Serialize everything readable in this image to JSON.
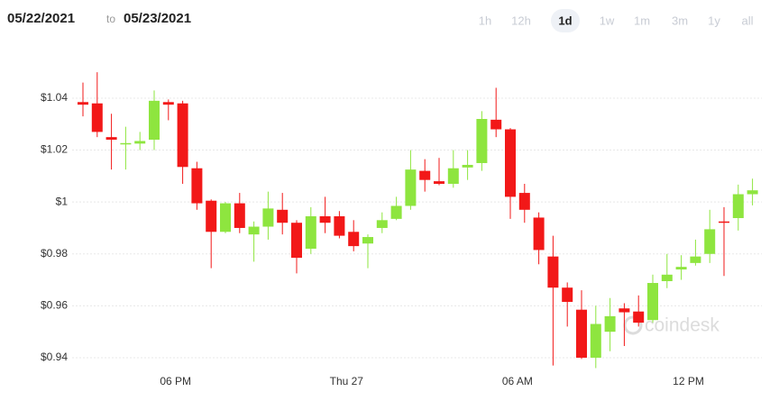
{
  "header": {
    "from_date": "05/22/2021",
    "separator": "to",
    "to_date": "05/23/2021",
    "ranges": [
      "1h",
      "12h",
      "1d",
      "1w",
      "1m",
      "3m",
      "1y",
      "all"
    ],
    "active_range": "1d"
  },
  "watermark": "coindesk",
  "chart_data": {
    "type": "candlestick",
    "categories": [
      null,
      null,
      null,
      null,
      null,
      null,
      null,
      "06 PM",
      null,
      null,
      null,
      null,
      null,
      null,
      null,
      null,
      null,
      null,
      null,
      "Thu 27",
      null,
      null,
      null,
      null,
      null,
      null,
      null,
      null,
      null,
      null,
      null,
      "06 AM",
      null,
      null,
      null,
      null,
      null,
      null,
      null,
      null,
      null,
      null,
      null,
      "12 PM",
      null,
      null,
      null,
      null
    ],
    "open": [
      1.0385,
      1.038,
      1.025,
      1.0225,
      1.0225,
      1.024,
      1.0385,
      1.038,
      1.013,
      1.0005,
      0.9885,
      0.9995,
      0.9875,
      0.9905,
      0.997,
      0.992,
      0.982,
      0.9945,
      0.9945,
      0.9885,
      0.984,
      0.99,
      0.9935,
      0.9985,
      1.012,
      1.008,
      1.007,
      1.0133,
      1.015,
      1.0317,
      1.028,
      1.0035,
      0.994,
      0.979,
      0.967,
      0.9585,
      0.94,
      0.95,
      0.959,
      0.9578,
      0.9545,
      0.9695,
      0.974,
      0.9765,
      0.98,
      0.9925,
      0.9938,
      1.003
    ],
    "high": [
      1.046,
      1.05,
      1.034,
      1.029,
      1.027,
      1.043,
      1.0395,
      1.039,
      1.0155,
      1.001,
      1.0,
      1.0035,
      0.9925,
      1.004,
      1.0035,
      0.993,
      0.998,
      1.002,
      0.9965,
      0.993,
      0.9875,
      0.996,
      1.002,
      1.02,
      1.0165,
      1.017,
      1.02,
      1.02,
      1.035,
      1.044,
      1.0285,
      1.007,
      0.996,
      0.987,
      0.969,
      0.966,
      0.96,
      0.963,
      0.961,
      0.964,
      0.972,
      0.98,
      0.9795,
      0.9855,
      0.997,
      0.998,
      1.0067,
      1.009
    ],
    "low": [
      1.033,
      1.025,
      1.0125,
      1.0125,
      1.02,
      1.02,
      1.0315,
      1.007,
      0.997,
      0.9745,
      0.988,
      0.988,
      0.977,
      0.9855,
      0.9875,
      0.9725,
      0.98,
      0.988,
      0.986,
      0.981,
      0.9745,
      0.988,
      0.993,
      0.997,
      1.004,
      1.0065,
      1.0055,
      1.0085,
      1.012,
      1.025,
      0.9935,
      0.992,
      0.976,
      0.937,
      0.952,
      0.9395,
      0.936,
      0.9425,
      0.9445,
      0.952,
      0.9535,
      0.9668,
      0.97,
      0.9755,
      0.9765,
      0.9715,
      0.989,
      0.9987
    ],
    "close": [
      1.0375,
      1.027,
      1.024,
      1.0227,
      1.0235,
      1.039,
      1.0375,
      1.0135,
      0.9995,
      0.9885,
      0.9995,
      0.99,
      0.9905,
      0.9975,
      0.992,
      0.9785,
      0.9945,
      0.992,
      0.987,
      0.983,
      0.9865,
      0.993,
      0.9985,
      1.0125,
      1.0085,
      1.007,
      1.013,
      1.0143,
      1.032,
      1.028,
      1.002,
      0.997,
      0.9815,
      0.967,
      0.9615,
      0.94,
      0.953,
      0.956,
      0.9575,
      0.9535,
      0.9688,
      0.972,
      0.975,
      0.979,
      0.9895,
      0.992,
      1.003,
      1.0045
    ],
    "up_color": "#8ee53f",
    "down_color": "#f21818",
    "ylim": [
      0.932,
      1.057
    ],
    "yticks": [
      {
        "value": 0.94,
        "label": "$0.94"
      },
      {
        "value": 0.96,
        "label": "$0.96"
      },
      {
        "value": 0.98,
        "label": "$0.98"
      },
      {
        "value": 1,
        "label": "$1"
      },
      {
        "value": 1.02,
        "label": "$1.02"
      },
      {
        "value": 1.04,
        "label": "$1.04"
      }
    ],
    "grid": true
  }
}
